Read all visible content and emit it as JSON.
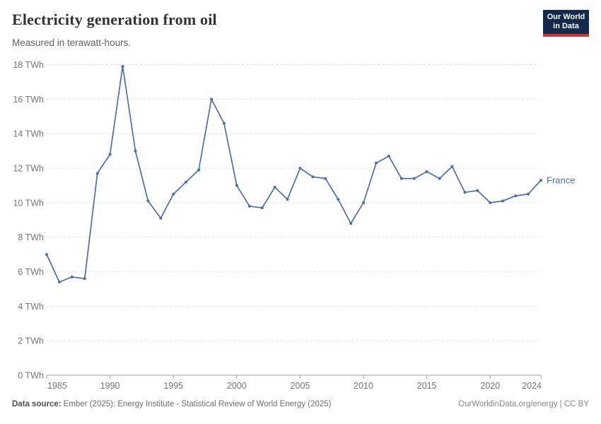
{
  "header": {
    "title": "Electricity generation from oil",
    "subtitle": "Measured in terawatt-hours.",
    "logo": {
      "line1": "Our World",
      "line2": "in Data",
      "bg_color": "#12294b",
      "stripe_color": "#d23432"
    }
  },
  "chart_data": {
    "type": "line",
    "title": "Electricity generation from oil",
    "subtitle": "Measured in terawatt-hours.",
    "unit": "TWh",
    "x": [
      1985,
      1986,
      1987,
      1988,
      1989,
      1990,
      1991,
      1992,
      1993,
      1994,
      1995,
      1996,
      1997,
      1998,
      1999,
      2000,
      2001,
      2002,
      2003,
      2004,
      2005,
      2006,
      2007,
      2008,
      2009,
      2010,
      2011,
      2012,
      2013,
      2014,
      2015,
      2016,
      2017,
      2018,
      2019,
      2020,
      2021,
      2022,
      2023,
      2024
    ],
    "series": [
      {
        "name": "France",
        "color": "#4c6fa8",
        "values": [
          7.0,
          5.4,
          5.7,
          5.6,
          11.7,
          12.8,
          17.9,
          13.0,
          10.1,
          9.1,
          10.5,
          11.2,
          11.9,
          16.0,
          14.6,
          11.0,
          9.8,
          9.7,
          10.9,
          10.2,
          12.0,
          11.5,
          11.4,
          10.2,
          8.8,
          10.0,
          12.3,
          12.7,
          11.4,
          11.4,
          11.8,
          11.4,
          12.1,
          10.6,
          10.7,
          10.0,
          10.1,
          10.4,
          10.5,
          11.3
        ]
      }
    ],
    "xlabel": "",
    "ylabel": "",
    "xlim": [
      1985,
      2024
    ],
    "ylim": [
      0,
      18
    ],
    "y_ticks": [
      0,
      2,
      4,
      6,
      8,
      10,
      12,
      14,
      16,
      18
    ],
    "y_tick_suffix": " TWh",
    "x_ticks": [
      1985,
      1990,
      1995,
      2000,
      2005,
      2010,
      2015,
      2020,
      2024
    ],
    "grid": "horizontal-dashed",
    "legend_position": "end-of-line-label",
    "colors": {
      "line": "#4c6fa8",
      "gridline": "#e0e0e0",
      "axis": "#9e9e9e",
      "tick_text": "#757575"
    }
  },
  "footer": {
    "source_label": "Data source:",
    "source_text": "Ember (2025); Energy Institute - Statistical Review of World Energy (2025)",
    "credit": "OurWorldinData.org/energy | CC BY"
  }
}
